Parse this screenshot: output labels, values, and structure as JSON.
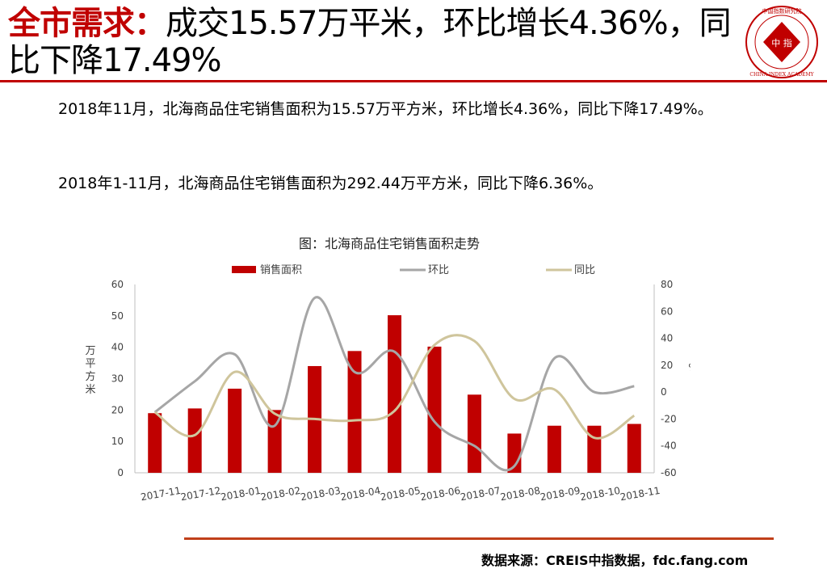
{
  "header": {
    "title_highlight": "全市需求：",
    "title_rest": "成交15.57万平米，环比增长4.36%，同比下降17.49%",
    "logo_text": "中 指",
    "logo_ring": "中国指数研究院 CHINA INDEX ACADEMY"
  },
  "body": {
    "paragraph1": "2018年11月，北海商品住宅销售面积为15.57万平方米，环比增长4.36%，同比下降17.49%。",
    "paragraph2": "2018年1-11月，北海商品住宅销售面积为292.44万平方米，同比下降6.36%。"
  },
  "chart_title": "图：北海商品住宅销售面积走势",
  "source": "数据来源：CREIS中指数据，fdc.fang.com",
  "colors": {
    "bar": "#c00000",
    "mom": "#a6a6a6",
    "yoy": "#cfc59c",
    "accent": "#c00000"
  },
  "chart_data": {
    "type": "bar",
    "categories": [
      "2017-11",
      "2017-12",
      "2018-01",
      "2018-02",
      "2018-03",
      "2018-04",
      "2018-05",
      "2018-06",
      "2018-07",
      "2018-08",
      "2018-09",
      "2018-10",
      "2018-11"
    ],
    "series": [
      {
        "name": "销售面积",
        "axis": "left",
        "type": "bar",
        "values": [
          19,
          20.5,
          26.8,
          20,
          34,
          38.8,
          50.2,
          40.2,
          24.9,
          12.5,
          15,
          15,
          15.57
        ]
      },
      {
        "name": "环比",
        "axis": "right",
        "type": "line",
        "values": [
          -15,
          8,
          28,
          -25,
          70,
          15,
          30,
          -22,
          -40,
          -55,
          25,
          0,
          4.36
        ]
      },
      {
        "name": "同比",
        "axis": "right",
        "type": "line",
        "values": [
          -15,
          -32,
          15,
          -16,
          -20,
          -21,
          -14,
          35,
          38,
          -5,
          2,
          -34,
          -17.49
        ]
      }
    ],
    "ylabel": "万平方米",
    "y2label": "%",
    "ylim": [
      0,
      60
    ],
    "yticks": [
      0,
      10,
      20,
      30,
      40,
      50,
      60
    ],
    "y2lim": [
      -60,
      80
    ],
    "y2ticks": [
      -60,
      -40,
      -20,
      0,
      20,
      40,
      60,
      80
    ],
    "grid": false,
    "legend": "top"
  }
}
